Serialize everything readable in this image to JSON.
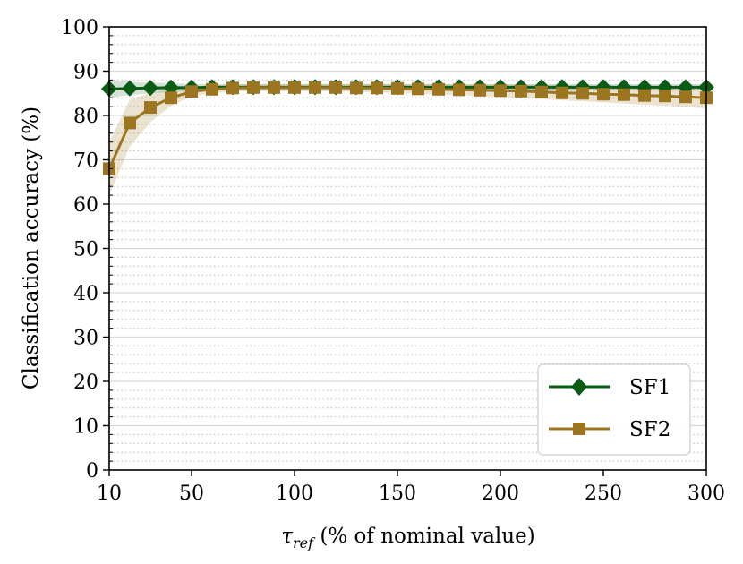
{
  "chart_data": {
    "type": "line",
    "title": "",
    "xlabel_symbol": "τ",
    "xlabel_subscript": "ref",
    "xlabel_rest": " (% of nominal value)",
    "ylabel": "Classification accuracy (%)",
    "xlim": [
      10,
      300
    ],
    "ylim": [
      0,
      100
    ],
    "xticks": [
      10,
      50,
      100,
      150,
      200,
      250,
      300
    ],
    "yticks": [
      0,
      10,
      20,
      30,
      40,
      50,
      60,
      70,
      80,
      90,
      100
    ],
    "grid": true,
    "legend_position": "lower-right",
    "x": [
      10,
      20,
      30,
      40,
      50,
      60,
      70,
      80,
      90,
      100,
      110,
      120,
      130,
      140,
      150,
      160,
      170,
      180,
      190,
      200,
      210,
      220,
      230,
      240,
      250,
      260,
      270,
      280,
      290,
      300
    ],
    "series": [
      {
        "name": "SF1",
        "color": "#0a5c14",
        "marker": "diamond",
        "values": [
          86.0,
          86.1,
          86.2,
          86.3,
          86.3,
          86.4,
          86.4,
          86.4,
          86.4,
          86.4,
          86.4,
          86.4,
          86.4,
          86.4,
          86.4,
          86.4,
          86.4,
          86.4,
          86.4,
          86.4,
          86.4,
          86.4,
          86.4,
          86.4,
          86.4,
          86.4,
          86.4,
          86.4,
          86.4,
          86.4
        ],
        "lower": [
          84.0,
          84.6,
          85.0,
          85.3,
          85.5,
          85.6,
          85.6,
          85.6,
          85.6,
          85.6,
          85.6,
          85.6,
          85.6,
          85.6,
          85.6,
          85.6,
          85.6,
          85.6,
          85.6,
          85.6,
          85.6,
          85.6,
          85.6,
          85.6,
          85.6,
          85.6,
          85.6,
          85.6,
          85.6,
          85.6
        ],
        "upper": [
          88.0,
          87.6,
          87.4,
          87.3,
          87.1,
          87.1,
          87.1,
          87.1,
          87.1,
          87.1,
          87.1,
          87.1,
          87.1,
          87.1,
          87.1,
          87.1,
          87.1,
          87.1,
          87.1,
          87.1,
          87.1,
          87.1,
          87.1,
          87.1,
          87.1,
          87.1,
          87.1,
          87.1,
          87.1,
          87.1
        ]
      },
      {
        "name": "SF2",
        "color": "#9b7520",
        "marker": "square",
        "values": [
          68.0,
          78.3,
          81.8,
          84.0,
          85.4,
          85.9,
          86.2,
          86.3,
          86.3,
          86.3,
          86.3,
          86.3,
          86.2,
          86.2,
          86.1,
          86.0,
          85.9,
          85.8,
          85.7,
          85.6,
          85.5,
          85.3,
          85.1,
          85.0,
          84.8,
          84.7,
          84.5,
          84.4,
          84.2,
          84.0
        ],
        "lower": [
          62.0,
          73.0,
          78.5,
          82.2,
          84.3,
          85.0,
          85.4,
          85.5,
          85.5,
          85.5,
          85.5,
          85.4,
          85.3,
          85.2,
          85.1,
          84.9,
          84.7,
          84.6,
          84.4,
          84.2,
          84.0,
          83.7,
          83.4,
          83.2,
          82.9,
          82.7,
          82.4,
          82.2,
          81.9,
          81.6
        ],
        "upper": [
          74.0,
          83.6,
          85.1,
          85.8,
          86.5,
          86.8,
          87.0,
          87.1,
          87.1,
          87.1,
          87.1,
          87.2,
          87.1,
          87.2,
          87.1,
          87.1,
          87.1,
          87.0,
          87.0,
          87.0,
          87.0,
          86.9,
          86.8,
          86.8,
          86.7,
          86.7,
          86.6,
          86.6,
          86.5,
          86.4
        ]
      }
    ]
  }
}
